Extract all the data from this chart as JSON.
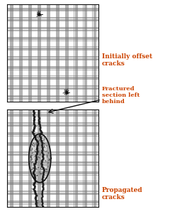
{
  "bg_color": "#ffffff",
  "grid_color": "#777777",
  "dark_color": "#111111",
  "orange_color": "#cc4400",
  "panel1_label": "Initially offset\ncracks",
  "panel2_label": "Propagated\ncracks",
  "annotation_label": "Fractured\nsection left\nbehind",
  "fig_width": 2.4,
  "fig_height": 3.08,
  "h_bands": [
    0.5,
    1.5,
    2.5,
    3.5,
    4.5,
    5.5,
    6.5,
    7.5,
    8.5,
    9.5
  ],
  "v_bands": [
    0.5,
    1.5,
    2.5,
    3.5,
    4.5,
    5.5,
    6.5,
    7.5,
    8.5,
    9.5
  ],
  "h_group_offsets": [
    -0.18,
    -0.09,
    0.0,
    0.09,
    0.18
  ],
  "v_group_offsets": [
    -0.18,
    -0.09,
    0.0,
    0.09,
    0.18
  ]
}
